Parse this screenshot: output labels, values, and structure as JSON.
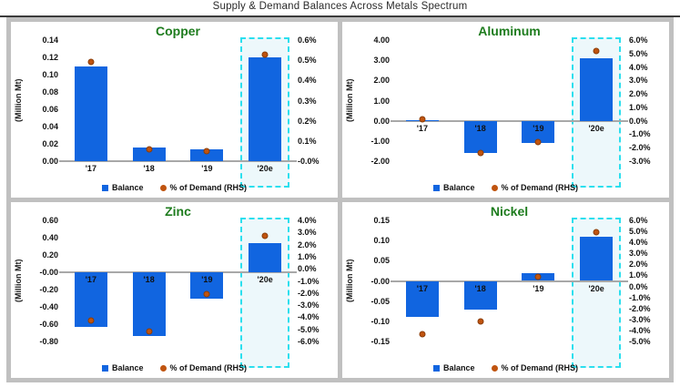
{
  "header": {
    "title": "Supply & Demand Balances Across Metals Spectrum"
  },
  "legend": {
    "balance": "Balance",
    "demand": "% of Demand (RHS)"
  },
  "colors": {
    "bar": "#1165e0",
    "dot": "#c0540f",
    "title_green": "#1e7c1e",
    "highlight_border": "#2bdfee",
    "highlight_fill": "#edf8fb",
    "axis_line": "#a8a8a8",
    "frame_gray": "#c0c0c0",
    "rule_dark": "#3c3c3c"
  },
  "chart_data": [
    {
      "type": "bar",
      "title": "Copper",
      "ylabel": "(Million Mt)",
      "categories": [
        "'17",
        "'18",
        "'19",
        "'20e"
      ],
      "series": [
        {
          "name": "Balance",
          "kind": "bar",
          "axis": "left",
          "values": [
            0.11,
            0.016,
            0.014,
            0.12
          ]
        },
        {
          "name": "% of Demand (RHS)",
          "kind": "scatter",
          "axis": "right",
          "values": [
            0.49,
            0.06,
            0.05,
            0.53
          ]
        }
      ],
      "left_axis": {
        "min": 0,
        "max": 0.14,
        "step": 0.02,
        "decimals": 2,
        "suffix": ""
      },
      "right_axis": {
        "min": 0,
        "max": 0.6,
        "step": 0.1,
        "decimals": 1,
        "suffix": "%"
      },
      "highlight_category_index": 3,
      "legend_position": "bottom",
      "grid": false
    },
    {
      "type": "bar",
      "title": "Aluminum",
      "ylabel": "(Million Mt)",
      "categories": [
        "'17",
        "'18",
        "'19",
        "'20e"
      ],
      "series": [
        {
          "name": "Balance",
          "kind": "bar",
          "axis": "left",
          "values": [
            0.03,
            -1.6,
            -1.1,
            3.1
          ]
        },
        {
          "name": "% of Demand (RHS)",
          "kind": "scatter",
          "axis": "right",
          "values": [
            0.1,
            -2.4,
            -1.6,
            5.2
          ]
        }
      ],
      "left_axis": {
        "min": -2,
        "max": 4,
        "step": 1,
        "decimals": 2,
        "suffix": ""
      },
      "right_axis": {
        "min": -3,
        "max": 6,
        "step": 1,
        "decimals": 1,
        "suffix": "%"
      },
      "highlight_category_index": 3,
      "legend_position": "bottom",
      "grid": false
    },
    {
      "type": "bar",
      "title": "Zinc",
      "ylabel": "(Million Mt)",
      "categories": [
        "'17",
        "'18",
        "'19",
        "'20e"
      ],
      "series": [
        {
          "name": "Balance",
          "kind": "bar",
          "axis": "left",
          "values": [
            -0.63,
            -0.74,
            -0.3,
            0.34
          ]
        },
        {
          "name": "% of Demand (RHS)",
          "kind": "scatter",
          "axis": "right",
          "values": [
            -4.3,
            -5.2,
            -2.1,
            2.7
          ]
        }
      ],
      "left_axis": {
        "min": -0.8,
        "max": 0.6,
        "step": 0.2,
        "decimals": 2,
        "suffix": ""
      },
      "right_axis": {
        "min": -6,
        "max": 4,
        "step": 1,
        "decimals": 1,
        "suffix": "%"
      },
      "highlight_category_index": 3,
      "legend_position": "bottom",
      "grid": false
    },
    {
      "type": "bar",
      "title": "Nickel",
      "ylabel": "(Million Mt)",
      "categories": [
        "'17",
        "'18",
        "'19",
        "'20e"
      ],
      "series": [
        {
          "name": "Balance",
          "kind": "bar",
          "axis": "left",
          "values": [
            -0.09,
            -0.07,
            0.02,
            0.11
          ]
        },
        {
          "name": "% of Demand (RHS)",
          "kind": "scatter",
          "axis": "right",
          "values": [
            -4.3,
            -3.2,
            0.9,
            4.9
          ]
        }
      ],
      "left_axis": {
        "min": -0.15,
        "max": 0.15,
        "step": 0.05,
        "decimals": 2,
        "suffix": ""
      },
      "right_axis": {
        "min": -5,
        "max": 6,
        "step": 1,
        "decimals": 1,
        "suffix": "%"
      },
      "highlight_category_index": 3,
      "legend_position": "bottom",
      "grid": false
    }
  ]
}
